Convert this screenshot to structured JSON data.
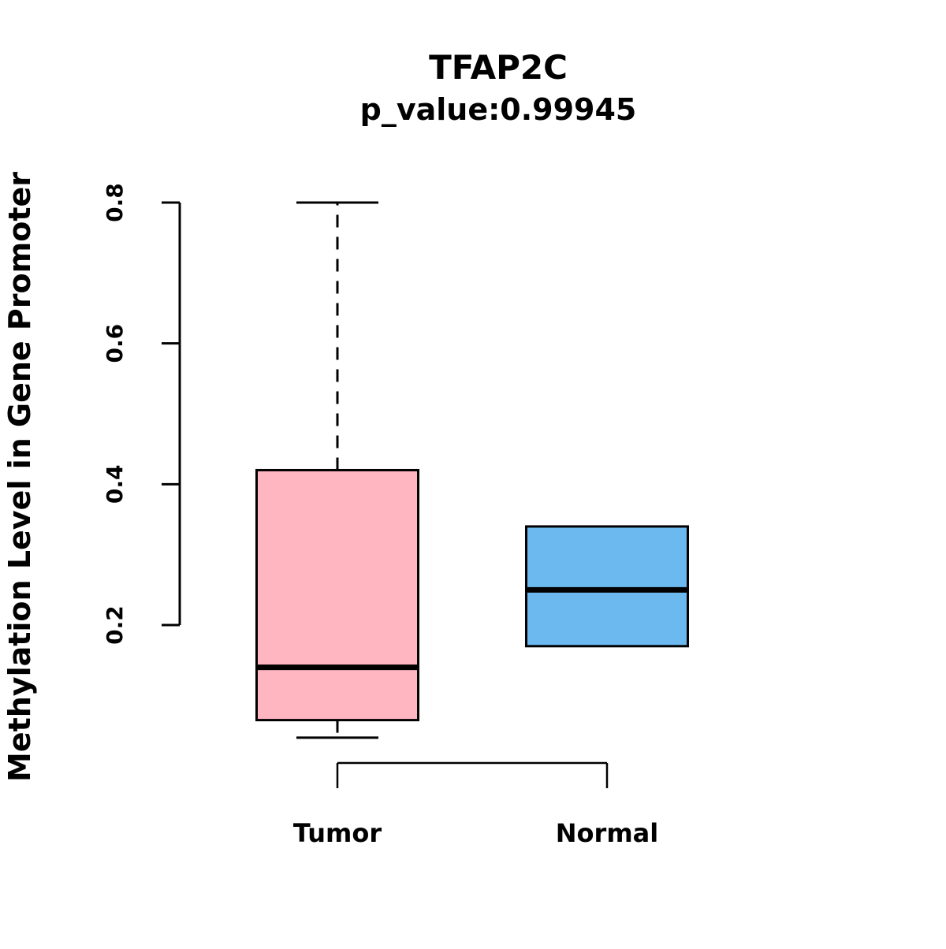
{
  "chart_data": {
    "type": "boxplot",
    "title": "TFAP2C",
    "subtitle": "p_value:0.99945",
    "ylabel": "Methylation Level in Gene Promoter",
    "xlabel": "",
    "categories": [
      "Tumor",
      "Normal"
    ],
    "yticks": [
      {
        "label": "0.2",
        "value": 0.2
      },
      {
        "label": "0.4",
        "value": 0.4
      },
      {
        "label": "0.6",
        "value": 0.6
      },
      {
        "label": "0.8",
        "value": 0.8
      }
    ],
    "axis_range": [
      0.2,
      0.8
    ],
    "grid": false,
    "legend": "none",
    "series": [
      {
        "name": "Tumor",
        "color": "#FFB6C1",
        "border_color": "#000000",
        "lower_whisker": 0.04,
        "q1": 0.065,
        "median": 0.14,
        "q3": 0.42,
        "upper_whisker": 0.8,
        "whisker_style": "dashed"
      },
      {
        "name": "Normal",
        "color": "#6CB9F0",
        "border_color": "#000000",
        "lower_whisker": 0.17,
        "q1": 0.17,
        "median": 0.25,
        "q3": 0.34,
        "upper_whisker": 0.34,
        "whisker_style": "dashed"
      }
    ],
    "annotations": [
      {
        "type": "bracket",
        "between": [
          "Tumor",
          "Normal"
        ],
        "label": ""
      }
    ]
  }
}
